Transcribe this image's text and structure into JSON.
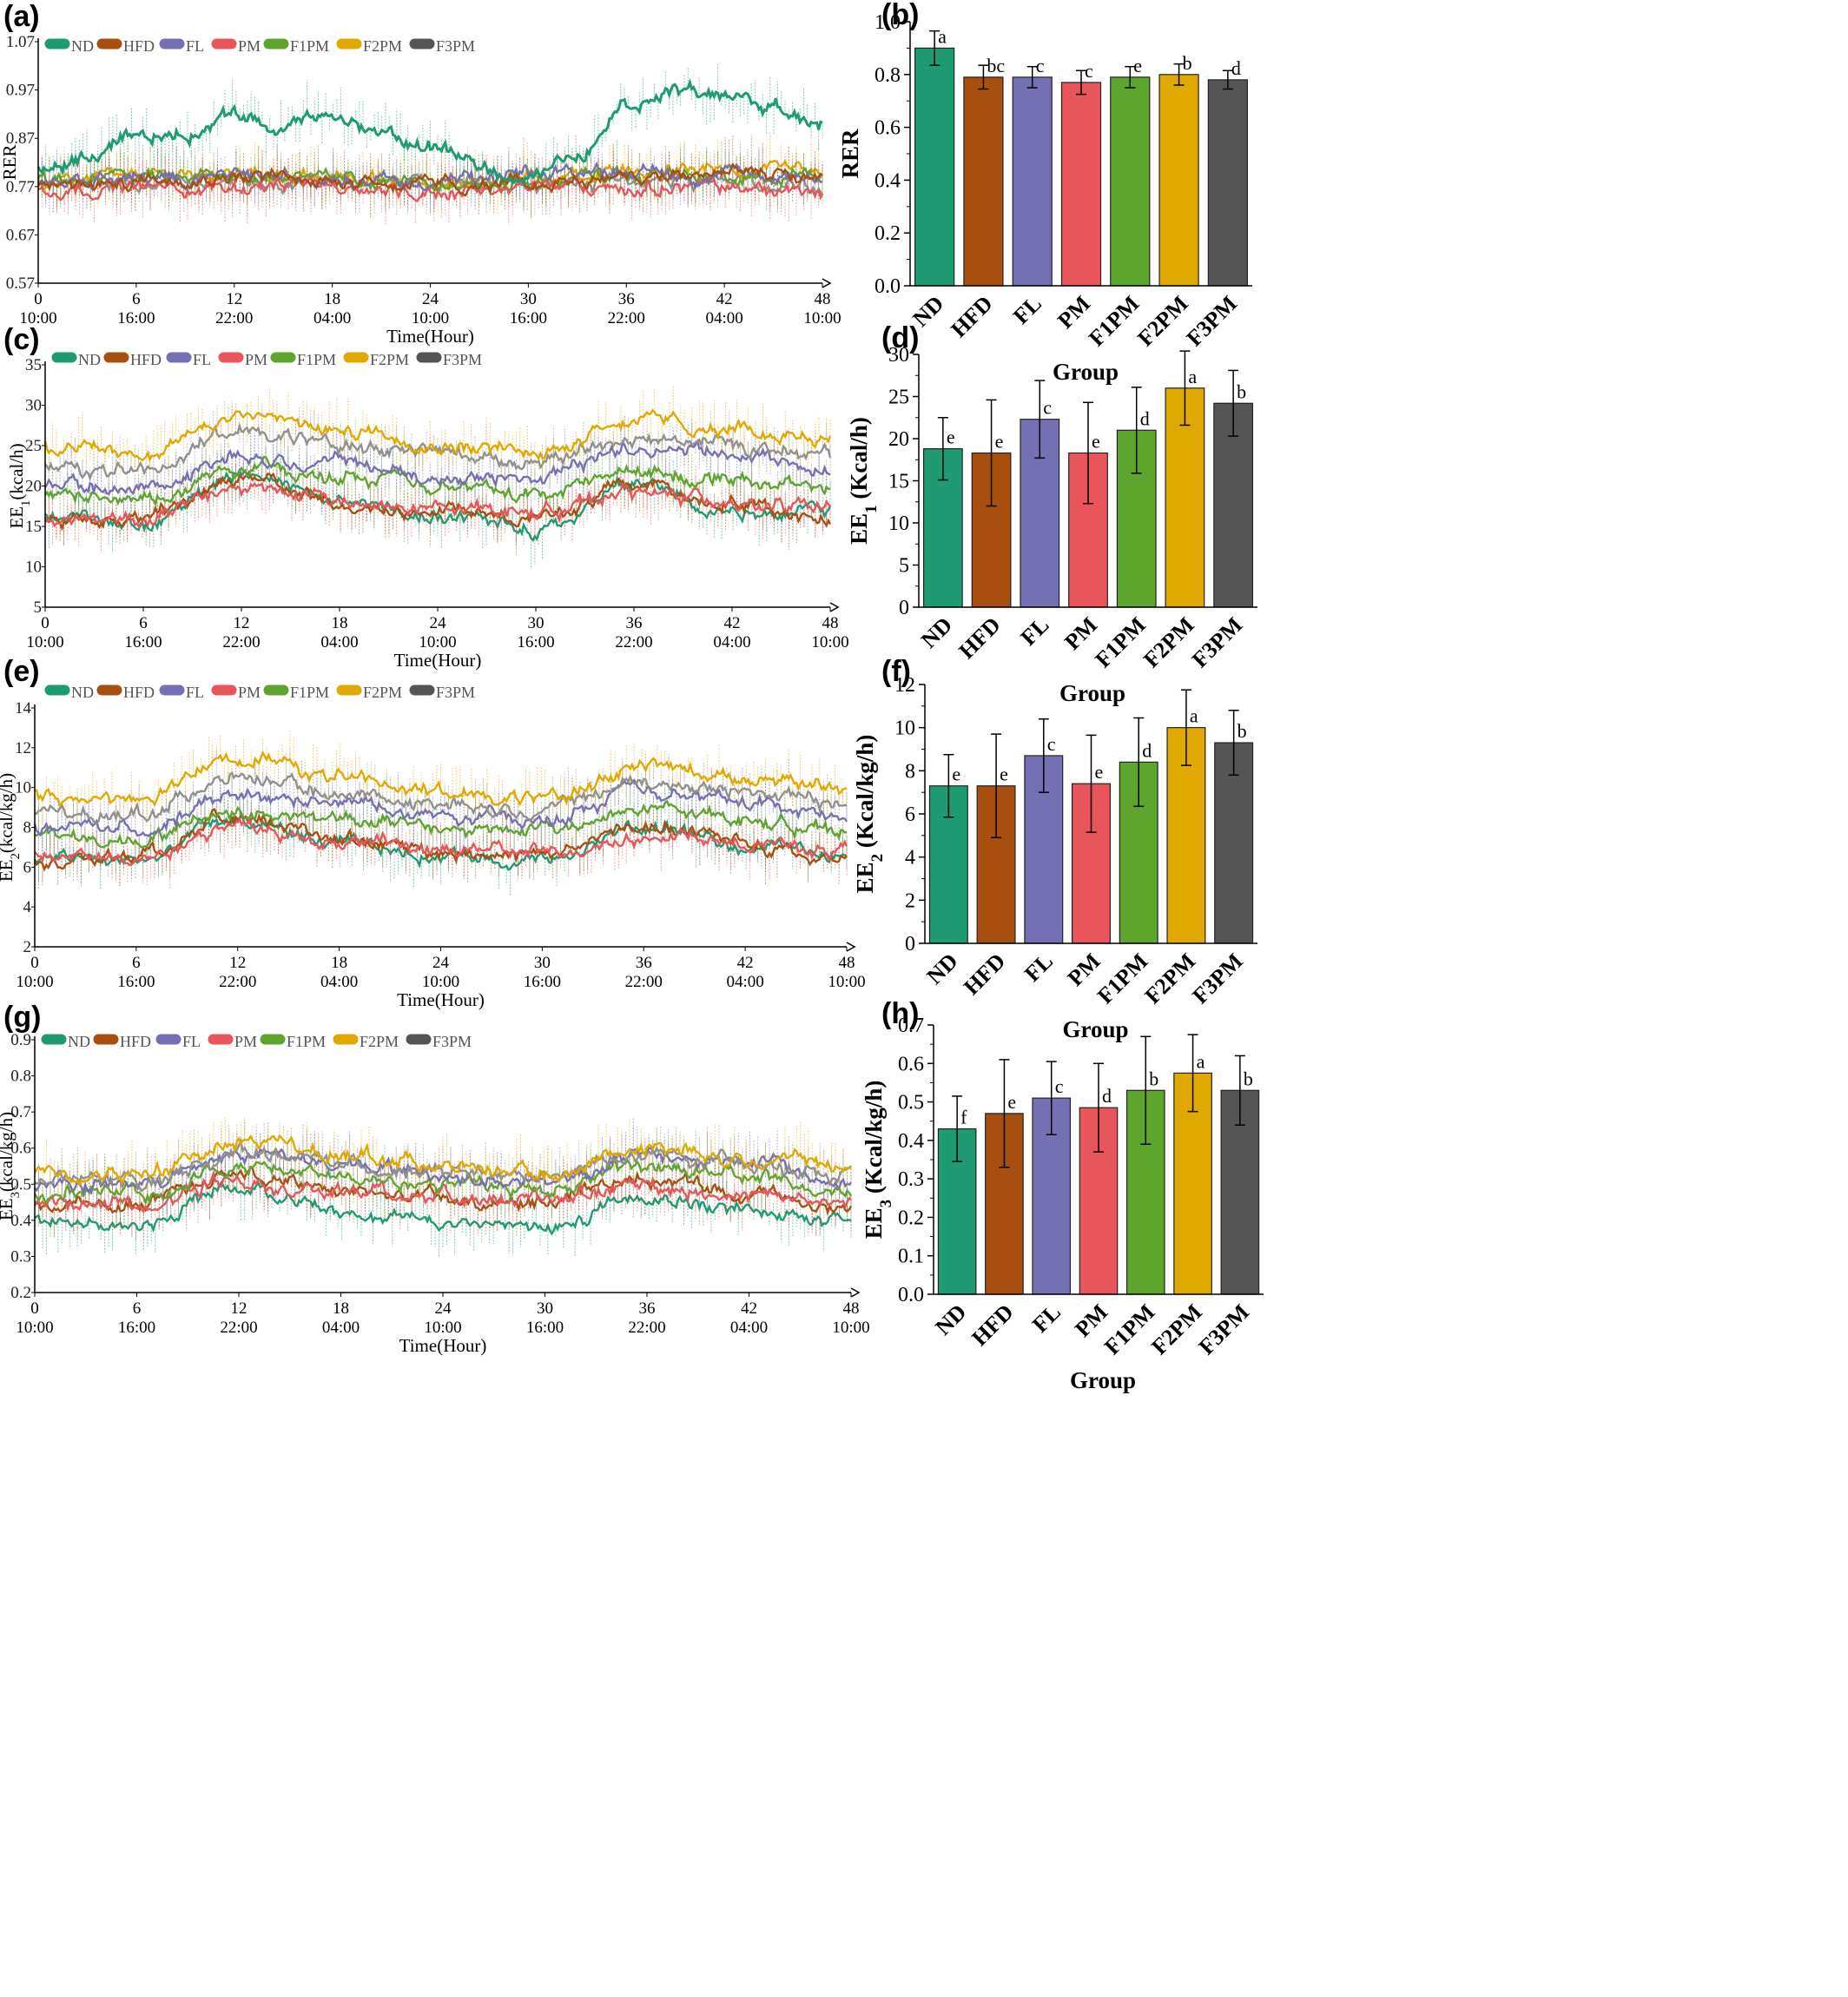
{
  "colors": {
    "ND": "#1e9b73",
    "HFD": "#a84f10",
    "FL": "#7570b3",
    "PM": "#e8555a",
    "F1PM": "#5ea52d",
    "F2PM": "#e0a800",
    "F3PM": "#555555",
    "F3PM_line": "#909090"
  },
  "chart_data": [
    {
      "panel": "(a)",
      "type": "line",
      "xlabel": "Time(Hour)",
      "ylabel": "RER",
      "xlim": [
        0,
        48
      ],
      "ylim": [
        0.57,
        1.07
      ],
      "yticks": [
        "0.57",
        "0.67",
        "0.77",
        "0.87",
        "0.97",
        "1.07"
      ],
      "xticks": [
        {
          "hour": "0",
          "clock": "10:00"
        },
        {
          "hour": "6",
          "clock": "16:00"
        },
        {
          "hour": "12",
          "clock": "22:00"
        },
        {
          "hour": "18",
          "clock": "04:00"
        },
        {
          "hour": "24",
          "clock": "10:00"
        },
        {
          "hour": "30",
          "clock": "16:00"
        },
        {
          "hour": "36",
          "clock": "22:00"
        },
        {
          "hour": "42",
          "clock": "04:00"
        },
        {
          "hour": "48",
          "clock": "10:00"
        }
      ],
      "legend": [
        "ND",
        "HFD",
        "FL",
        "PM",
        "F1PM",
        "F2PM",
        "F3PM"
      ],
      "series": [
        {
          "name": "ND",
          "x": [
            0,
            3,
            6,
            9,
            12,
            15,
            18,
            21,
            24,
            27,
            30,
            33,
            36,
            39,
            42,
            45,
            48
          ],
          "y": [
            0.8,
            0.83,
            0.87,
            0.88,
            0.92,
            0.9,
            0.92,
            0.88,
            0.85,
            0.81,
            0.78,
            0.84,
            0.94,
            0.96,
            0.96,
            0.94,
            0.9
          ]
        },
        {
          "name": "HFD",
          "x": [
            0,
            6,
            12,
            18,
            24,
            30,
            36,
            42,
            48
          ],
          "y": [
            0.77,
            0.78,
            0.79,
            0.78,
            0.77,
            0.78,
            0.79,
            0.8,
            0.79
          ]
        },
        {
          "name": "FL",
          "x": [
            0,
            6,
            12,
            18,
            24,
            30,
            36,
            42,
            48
          ],
          "y": [
            0.78,
            0.79,
            0.79,
            0.79,
            0.78,
            0.79,
            0.8,
            0.8,
            0.79
          ]
        },
        {
          "name": "PM",
          "x": [
            0,
            6,
            12,
            18,
            24,
            30,
            36,
            42,
            48
          ],
          "y": [
            0.76,
            0.77,
            0.77,
            0.77,
            0.76,
            0.77,
            0.77,
            0.77,
            0.76
          ]
        },
        {
          "name": "F1PM",
          "x": [
            0,
            6,
            12,
            18,
            24,
            30,
            36,
            42,
            48
          ],
          "y": [
            0.78,
            0.79,
            0.79,
            0.79,
            0.78,
            0.78,
            0.79,
            0.79,
            0.79
          ]
        },
        {
          "name": "F2PM",
          "x": [
            0,
            6,
            12,
            18,
            24,
            30,
            36,
            42,
            48
          ],
          "y": [
            0.78,
            0.79,
            0.8,
            0.79,
            0.78,
            0.79,
            0.8,
            0.8,
            0.8
          ]
        },
        {
          "name": "F3PM",
          "x": [
            0,
            6,
            12,
            18,
            24,
            30,
            36,
            42,
            48
          ],
          "y": [
            0.77,
            0.78,
            0.78,
            0.78,
            0.77,
            0.78,
            0.78,
            0.78,
            0.77
          ]
        }
      ]
    },
    {
      "panel": "(b)",
      "type": "bar",
      "xlabel": "Group",
      "ylabel": "RER",
      "ylim": [
        0.0,
        1.0
      ],
      "yticks": [
        "0.0",
        "0.2",
        "0.4",
        "0.6",
        "0.8",
        "1.0"
      ],
      "categories": [
        "ND",
        "HFD",
        "FL",
        "PM",
        "F1PM",
        "F2PM",
        "F3PM"
      ],
      "values": [
        0.9,
        0.79,
        0.79,
        0.77,
        0.79,
        0.8,
        0.78
      ],
      "errors": [
        0.065,
        0.045,
        0.04,
        0.045,
        0.04,
        0.04,
        0.035
      ],
      "labels": [
        "a",
        "bc",
        "c",
        "c",
        "e",
        "b",
        "d"
      ]
    },
    {
      "panel": "(c)",
      "type": "line",
      "xlabel": "Time(Hour)",
      "ylabel": "EE₁(kcal/h)",
      "xlim": [
        0,
        48
      ],
      "ylim": [
        5,
        35
      ],
      "yticks": [
        "5",
        "10",
        "15",
        "20",
        "25",
        "30",
        "35"
      ],
      "xticks": [
        {
          "hour": "0",
          "clock": "10:00"
        },
        {
          "hour": "6",
          "clock": "16:00"
        },
        {
          "hour": "12",
          "clock": "22:00"
        },
        {
          "hour": "18",
          "clock": "04:00"
        },
        {
          "hour": "24",
          "clock": "10:00"
        },
        {
          "hour": "30",
          "clock": "16:00"
        },
        {
          "hour": "36",
          "clock": "22:00"
        },
        {
          "hour": "42",
          "clock": "04:00"
        },
        {
          "hour": "48",
          "clock": "10:00"
        }
      ],
      "legend": [
        "ND",
        "HFD",
        "FL",
        "PM",
        "F1PM",
        "F2PM",
        "F3PM"
      ],
      "series": [
        {
          "name": "ND",
          "x": [
            0,
            6,
            12,
            18,
            24,
            30,
            36,
            42,
            48
          ],
          "y": [
            16,
            15,
            22,
            18,
            16,
            15,
            20,
            17,
            17
          ]
        },
        {
          "name": "HFD",
          "x": [
            0,
            6,
            12,
            18,
            24,
            30,
            36,
            42,
            48
          ],
          "y": [
            16,
            16,
            21,
            18,
            17,
            16,
            20,
            18,
            16
          ]
        },
        {
          "name": "FL",
          "x": [
            0,
            6,
            12,
            18,
            24,
            30,
            36,
            42,
            48
          ],
          "y": [
            20,
            20,
            24,
            23,
            21,
            21,
            25,
            24,
            22
          ]
        },
        {
          "name": "PM",
          "x": [
            0,
            6,
            12,
            18,
            24,
            30,
            36,
            42,
            48
          ],
          "y": [
            16,
            16,
            20,
            18,
            17,
            17,
            19,
            18,
            17
          ]
        },
        {
          "name": "F1PM",
          "x": [
            0,
            6,
            12,
            18,
            24,
            30,
            36,
            42,
            48
          ],
          "y": [
            19,
            18,
            22,
            21,
            20,
            19,
            22,
            21,
            20
          ]
        },
        {
          "name": "F2PM",
          "x": [
            0,
            6,
            12,
            18,
            24,
            30,
            36,
            42,
            48
          ],
          "y": [
            25,
            24,
            29,
            27,
            25,
            24,
            28,
            27,
            26
          ]
        },
        {
          "name": "F3PM",
          "x": [
            0,
            6,
            12,
            18,
            24,
            30,
            36,
            42,
            48
          ],
          "y": [
            22,
            22,
            27,
            25,
            24,
            23,
            26,
            25,
            24
          ]
        }
      ]
    },
    {
      "panel": "(d)",
      "type": "bar",
      "xlabel": "Group",
      "ylabel": "EE₁ (Kcal/h)",
      "ylim": [
        0,
        30
      ],
      "yticks": [
        "0",
        "5",
        "10",
        "15",
        "20",
        "25",
        "30"
      ],
      "categories": [
        "ND",
        "HFD",
        "FL",
        "PM",
        "F1PM",
        "F2PM",
        "F3PM"
      ],
      "values": [
        18.8,
        18.3,
        22.3,
        18.3,
        21.0,
        26.0,
        24.2
      ],
      "errors": [
        3.7,
        6.3,
        4.6,
        6.0,
        5.1,
        4.4,
        3.9
      ],
      "labels": [
        "e",
        "e",
        "c",
        "e",
        "d",
        "a",
        "b"
      ]
    },
    {
      "panel": "(e)",
      "type": "line",
      "xlabel": "Time(Hour)",
      "ylabel": "EE₂(kcal/kg/h)",
      "xlim": [
        0,
        48
      ],
      "ylim": [
        2,
        14
      ],
      "yticks": [
        "2",
        "4",
        "6",
        "8",
        "10",
        "12",
        "14"
      ],
      "xticks": [
        {
          "hour": "0",
          "clock": "10:00"
        },
        {
          "hour": "6",
          "clock": "16:00"
        },
        {
          "hour": "12",
          "clock": "22:00"
        },
        {
          "hour": "18",
          "clock": "04:00"
        },
        {
          "hour": "24",
          "clock": "10:00"
        },
        {
          "hour": "30",
          "clock": "16:00"
        },
        {
          "hour": "36",
          "clock": "22:00"
        },
        {
          "hour": "42",
          "clock": "04:00"
        },
        {
          "hour": "48",
          "clock": "10:00"
        }
      ],
      "legend": [
        "ND",
        "HFD",
        "FL",
        "PM",
        "F1PM",
        "F2PM",
        "F3PM"
      ],
      "series": [
        {
          "name": "ND",
          "x": [
            0,
            6,
            12,
            18,
            24,
            30,
            36,
            42,
            48
          ],
          "y": [
            6.5,
            6.3,
            8.5,
            7.2,
            6.6,
            6.4,
            8.0,
            7.0,
            6.8
          ]
        },
        {
          "name": "HFD",
          "x": [
            0,
            6,
            12,
            18,
            24,
            30,
            36,
            42,
            48
          ],
          "y": [
            6.5,
            6.5,
            8.5,
            7.3,
            6.9,
            6.6,
            8.0,
            7.3,
            6.4
          ]
        },
        {
          "name": "FL",
          "x": [
            0,
            6,
            12,
            18,
            24,
            30,
            36,
            42,
            48
          ],
          "y": [
            8.0,
            8.0,
            9.5,
            9.2,
            8.5,
            8.3,
            9.8,
            9.3,
            8.5
          ]
        },
        {
          "name": "PM",
          "x": [
            0,
            6,
            12,
            18,
            24,
            30,
            36,
            42,
            48
          ],
          "y": [
            6.6,
            6.6,
            8.0,
            7.3,
            6.9,
            6.8,
            7.6,
            7.2,
            6.8
          ]
        },
        {
          "name": "F1PM",
          "x": [
            0,
            6,
            12,
            18,
            24,
            30,
            36,
            42,
            48
          ],
          "y": [
            7.6,
            7.3,
            8.8,
            8.5,
            8.0,
            7.8,
            8.9,
            8.4,
            7.8
          ]
        },
        {
          "name": "F2PM",
          "x": [
            0,
            6,
            12,
            18,
            24,
            30,
            36,
            42,
            48
          ],
          "y": [
            9.6,
            9.3,
            11.5,
            10.6,
            9.8,
            9.4,
            11.0,
            10.5,
            10.0
          ]
        },
        {
          "name": "F3PM",
          "x": [
            0,
            6,
            12,
            18,
            24,
            30,
            36,
            42,
            48
          ],
          "y": [
            8.6,
            8.6,
            10.5,
            9.8,
            9.3,
            9.0,
            10.3,
            9.8,
            9.2
          ]
        }
      ]
    },
    {
      "panel": "(f)",
      "type": "bar",
      "xlabel": "Group",
      "ylabel": "EE₂ (Kcal/kg/h)",
      "ylim": [
        0,
        12
      ],
      "yticks": [
        "0",
        "2",
        "4",
        "6",
        "8",
        "10",
        "12"
      ],
      "categories": [
        "ND",
        "HFD",
        "FL",
        "PM",
        "F1PM",
        "F2PM",
        "F3PM"
      ],
      "values": [
        7.3,
        7.3,
        8.7,
        7.4,
        8.4,
        10.0,
        9.3
      ],
      "errors": [
        1.45,
        2.4,
        1.7,
        2.25,
        2.05,
        1.75,
        1.5
      ],
      "labels": [
        "e",
        "e",
        "c",
        "e",
        "d",
        "a",
        "b"
      ]
    },
    {
      "panel": "(g)",
      "type": "line",
      "xlabel": "Time(Hour)",
      "ylabel": "EE₃(kcal/kg/h)",
      "xlim": [
        0,
        48
      ],
      "ylim": [
        0.2,
        0.9
      ],
      "yticks": [
        "0.2",
        "0.3",
        "0.4",
        "0.5",
        "0.6",
        "0.7",
        "0.8",
        "0.9"
      ],
      "xticks": [
        {
          "hour": "0",
          "clock": "10:00"
        },
        {
          "hour": "6",
          "clock": "16:00"
        },
        {
          "hour": "12",
          "clock": "22:00"
        },
        {
          "hour": "18",
          "clock": "04:00"
        },
        {
          "hour": "24",
          "clock": "10:00"
        },
        {
          "hour": "30",
          "clock": "16:00"
        },
        {
          "hour": "36",
          "clock": "22:00"
        },
        {
          "hour": "42",
          "clock": "04:00"
        },
        {
          "hour": "48",
          "clock": "10:00"
        }
      ],
      "legend": [
        "ND",
        "HFD",
        "FL",
        "PM",
        "F1PM",
        "F2PM",
        "F3PM"
      ],
      "series": [
        {
          "name": "ND",
          "x": [
            0,
            6,
            12,
            18,
            24,
            30,
            36,
            42,
            48
          ],
          "y": [
            0.41,
            0.38,
            0.5,
            0.42,
            0.4,
            0.38,
            0.47,
            0.42,
            0.4
          ]
        },
        {
          "name": "HFD",
          "x": [
            0,
            6,
            12,
            18,
            24,
            30,
            36,
            42,
            48
          ],
          "y": [
            0.44,
            0.44,
            0.53,
            0.48,
            0.46,
            0.45,
            0.52,
            0.48,
            0.43
          ]
        },
        {
          "name": "FL",
          "x": [
            0,
            6,
            12,
            18,
            24,
            30,
            36,
            42,
            48
          ],
          "y": [
            0.5,
            0.5,
            0.58,
            0.56,
            0.52,
            0.51,
            0.58,
            0.56,
            0.5
          ]
        },
        {
          "name": "PM",
          "x": [
            0,
            6,
            12,
            18,
            24,
            30,
            36,
            42,
            48
          ],
          "y": [
            0.44,
            0.44,
            0.52,
            0.48,
            0.46,
            0.45,
            0.5,
            0.47,
            0.44
          ]
        },
        {
          "name": "F1PM",
          "x": [
            0,
            6,
            12,
            18,
            24,
            30,
            36,
            42,
            48
          ],
          "y": [
            0.48,
            0.47,
            0.55,
            0.53,
            0.5,
            0.49,
            0.55,
            0.52,
            0.49
          ]
        },
        {
          "name": "F2PM",
          "x": [
            0,
            6,
            12,
            18,
            24,
            30,
            36,
            42,
            48
          ],
          "y": [
            0.53,
            0.52,
            0.62,
            0.58,
            0.55,
            0.53,
            0.61,
            0.58,
            0.55
          ]
        },
        {
          "name": "F3PM",
          "x": [
            0,
            6,
            12,
            18,
            24,
            30,
            36,
            42,
            48
          ],
          "y": [
            0.51,
            0.51,
            0.59,
            0.56,
            0.53,
            0.52,
            0.58,
            0.55,
            0.52
          ]
        }
      ]
    },
    {
      "panel": "(h)",
      "type": "bar",
      "xlabel": "Group",
      "ylabel": "EE₃ (Kcal/kg/h)",
      "ylim": [
        0.0,
        0.7
      ],
      "yticks": [
        "0.0",
        "0.1",
        "0.2",
        "0.3",
        "0.4",
        "0.5",
        "0.6",
        "0.7"
      ],
      "categories": [
        "ND",
        "HFD",
        "FL",
        "PM",
        "F1PM",
        "F2PM",
        "F3PM"
      ],
      "values": [
        0.43,
        0.47,
        0.51,
        0.485,
        0.53,
        0.575,
        0.53
      ],
      "errors": [
        0.085,
        0.14,
        0.095,
        0.115,
        0.14,
        0.1,
        0.09
      ],
      "labels": [
        "f",
        "e",
        "c",
        "d",
        "b",
        "a",
        "b"
      ]
    }
  ]
}
